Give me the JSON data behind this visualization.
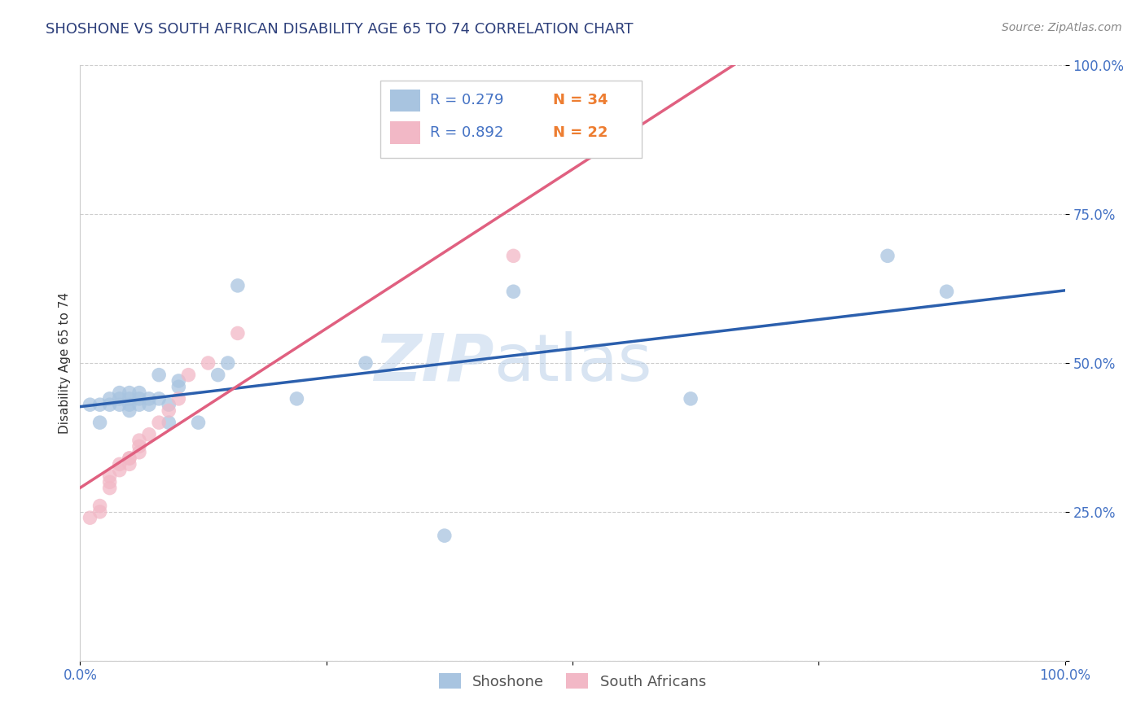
{
  "title": "SHOSHONE VS SOUTH AFRICAN DISABILITY AGE 65 TO 74 CORRELATION CHART",
  "source_text": "Source: ZipAtlas.com",
  "ylabel": "Disability Age 65 to 74",
  "xlim": [
    0.0,
    1.0
  ],
  "ylim": [
    0.0,
    1.0
  ],
  "xticks": [
    0.0,
    0.25,
    0.5,
    0.75,
    1.0
  ],
  "yticks": [
    0.0,
    0.25,
    0.5,
    0.75,
    1.0
  ],
  "xticklabels": [
    "0.0%",
    "",
    "",
    "",
    "100.0%"
  ],
  "yticklabels": [
    "",
    "25.0%",
    "50.0%",
    "75.0%",
    "100.0%"
  ],
  "shoshone_color": "#a8c4e0",
  "south_african_color": "#f2b8c6",
  "shoshone_line_color": "#2b5fad",
  "south_african_line_color": "#e06080",
  "legend_R1": "R = 0.279",
  "legend_N1": "N = 34",
  "legend_R2": "R = 0.892",
  "legend_N2": "N = 22",
  "legend_label1": "Shoshone",
  "legend_label2": "South Africans",
  "watermark_zip": "ZIP",
  "watermark_atlas": "atlas",
  "title_fontsize": 13,
  "axis_label_fontsize": 11,
  "tick_fontsize": 12,
  "shoshone_x": [
    0.01,
    0.02,
    0.02,
    0.03,
    0.03,
    0.04,
    0.04,
    0.04,
    0.05,
    0.05,
    0.05,
    0.05,
    0.06,
    0.06,
    0.06,
    0.07,
    0.07,
    0.08,
    0.08,
    0.09,
    0.09,
    0.1,
    0.1,
    0.12,
    0.14,
    0.15,
    0.16,
    0.22,
    0.29,
    0.37,
    0.44,
    0.62,
    0.82,
    0.88
  ],
  "shoshone_y": [
    0.43,
    0.4,
    0.43,
    0.43,
    0.44,
    0.43,
    0.44,
    0.45,
    0.42,
    0.43,
    0.44,
    0.45,
    0.43,
    0.44,
    0.45,
    0.43,
    0.44,
    0.44,
    0.48,
    0.4,
    0.43,
    0.47,
    0.46,
    0.4,
    0.48,
    0.5,
    0.63,
    0.44,
    0.5,
    0.21,
    0.62,
    0.44,
    0.68,
    0.62
  ],
  "south_african_x": [
    0.01,
    0.02,
    0.02,
    0.03,
    0.03,
    0.03,
    0.04,
    0.04,
    0.05,
    0.05,
    0.05,
    0.06,
    0.06,
    0.06,
    0.07,
    0.08,
    0.09,
    0.1,
    0.11,
    0.13,
    0.16,
    0.44
  ],
  "south_african_y": [
    0.24,
    0.25,
    0.26,
    0.29,
    0.3,
    0.31,
    0.32,
    0.33,
    0.33,
    0.34,
    0.34,
    0.35,
    0.36,
    0.37,
    0.38,
    0.4,
    0.42,
    0.44,
    0.48,
    0.5,
    0.55,
    0.68
  ],
  "background_color": "#ffffff",
  "grid_color": "#c8c8c8",
  "plot_bg_color": "#ffffff",
  "tick_color": "#4472c4",
  "legend_r_color": "#4472c4",
  "legend_n_color": "#ed7d31",
  "legend_text_dark": "#333333"
}
